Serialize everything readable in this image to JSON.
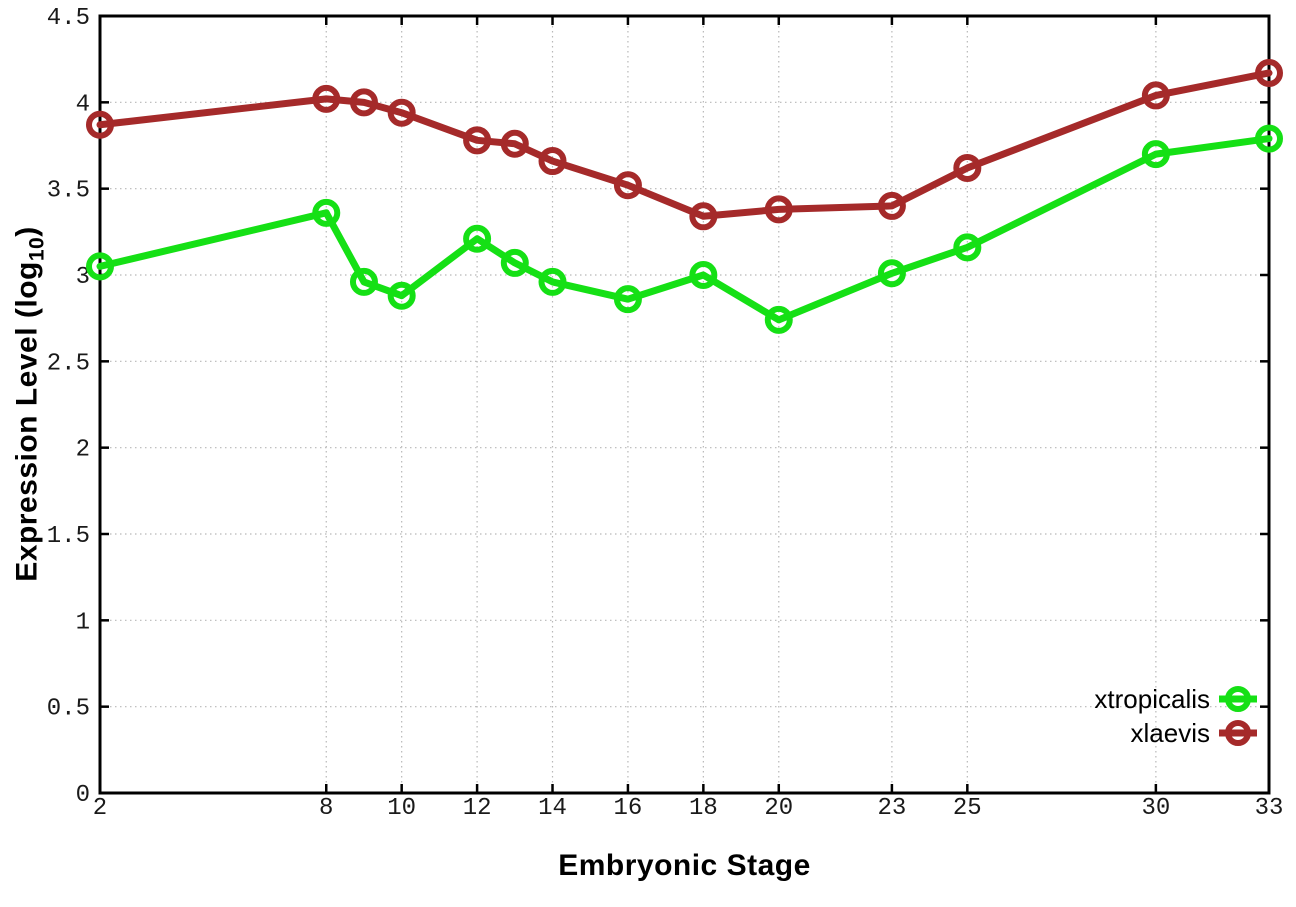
{
  "chart_data": {
    "type": "line",
    "title": "",
    "xlabel": "Embryonic Stage",
    "ylabel": "Expression Level (log10)",
    "ylabel_parts": {
      "main": "Expression Level (log",
      "sub": "10",
      "end": ")"
    },
    "xlim": [
      2,
      33
    ],
    "ylim": [
      0,
      4.5
    ],
    "x": [
      2,
      8,
      9,
      10,
      12,
      13,
      14,
      16,
      18,
      20,
      23,
      25,
      30,
      33
    ],
    "xticks": [
      2,
      8,
      10,
      12,
      14,
      16,
      18,
      20,
      23,
      25,
      30,
      33
    ],
    "yticks": [
      0,
      0.5,
      1,
      1.5,
      2,
      2.5,
      3,
      3.5,
      4,
      4.5
    ],
    "grid": true,
    "legend_position": "inside-bottom-right",
    "series": [
      {
        "name": "xtropicalis",
        "color": "#15E015",
        "marker": "open-circle",
        "values": [
          3.05,
          3.36,
          2.96,
          2.88,
          3.21,
          3.07,
          2.96,
          2.86,
          3.0,
          2.74,
          3.01,
          3.16,
          3.7,
          3.79
        ]
      },
      {
        "name": "xlaevis",
        "color": "#A52A2A",
        "marker": "open-circle",
        "values": [
          3.87,
          4.02,
          4.0,
          3.94,
          3.78,
          3.76,
          3.66,
          3.52,
          3.34,
          3.38,
          3.4,
          3.62,
          4.04,
          4.17
        ]
      }
    ],
    "colors": {
      "axis": "#000000",
      "grid": "#b8b8b8",
      "tick_text": "#1a1a1a",
      "background": "#ffffff"
    }
  }
}
